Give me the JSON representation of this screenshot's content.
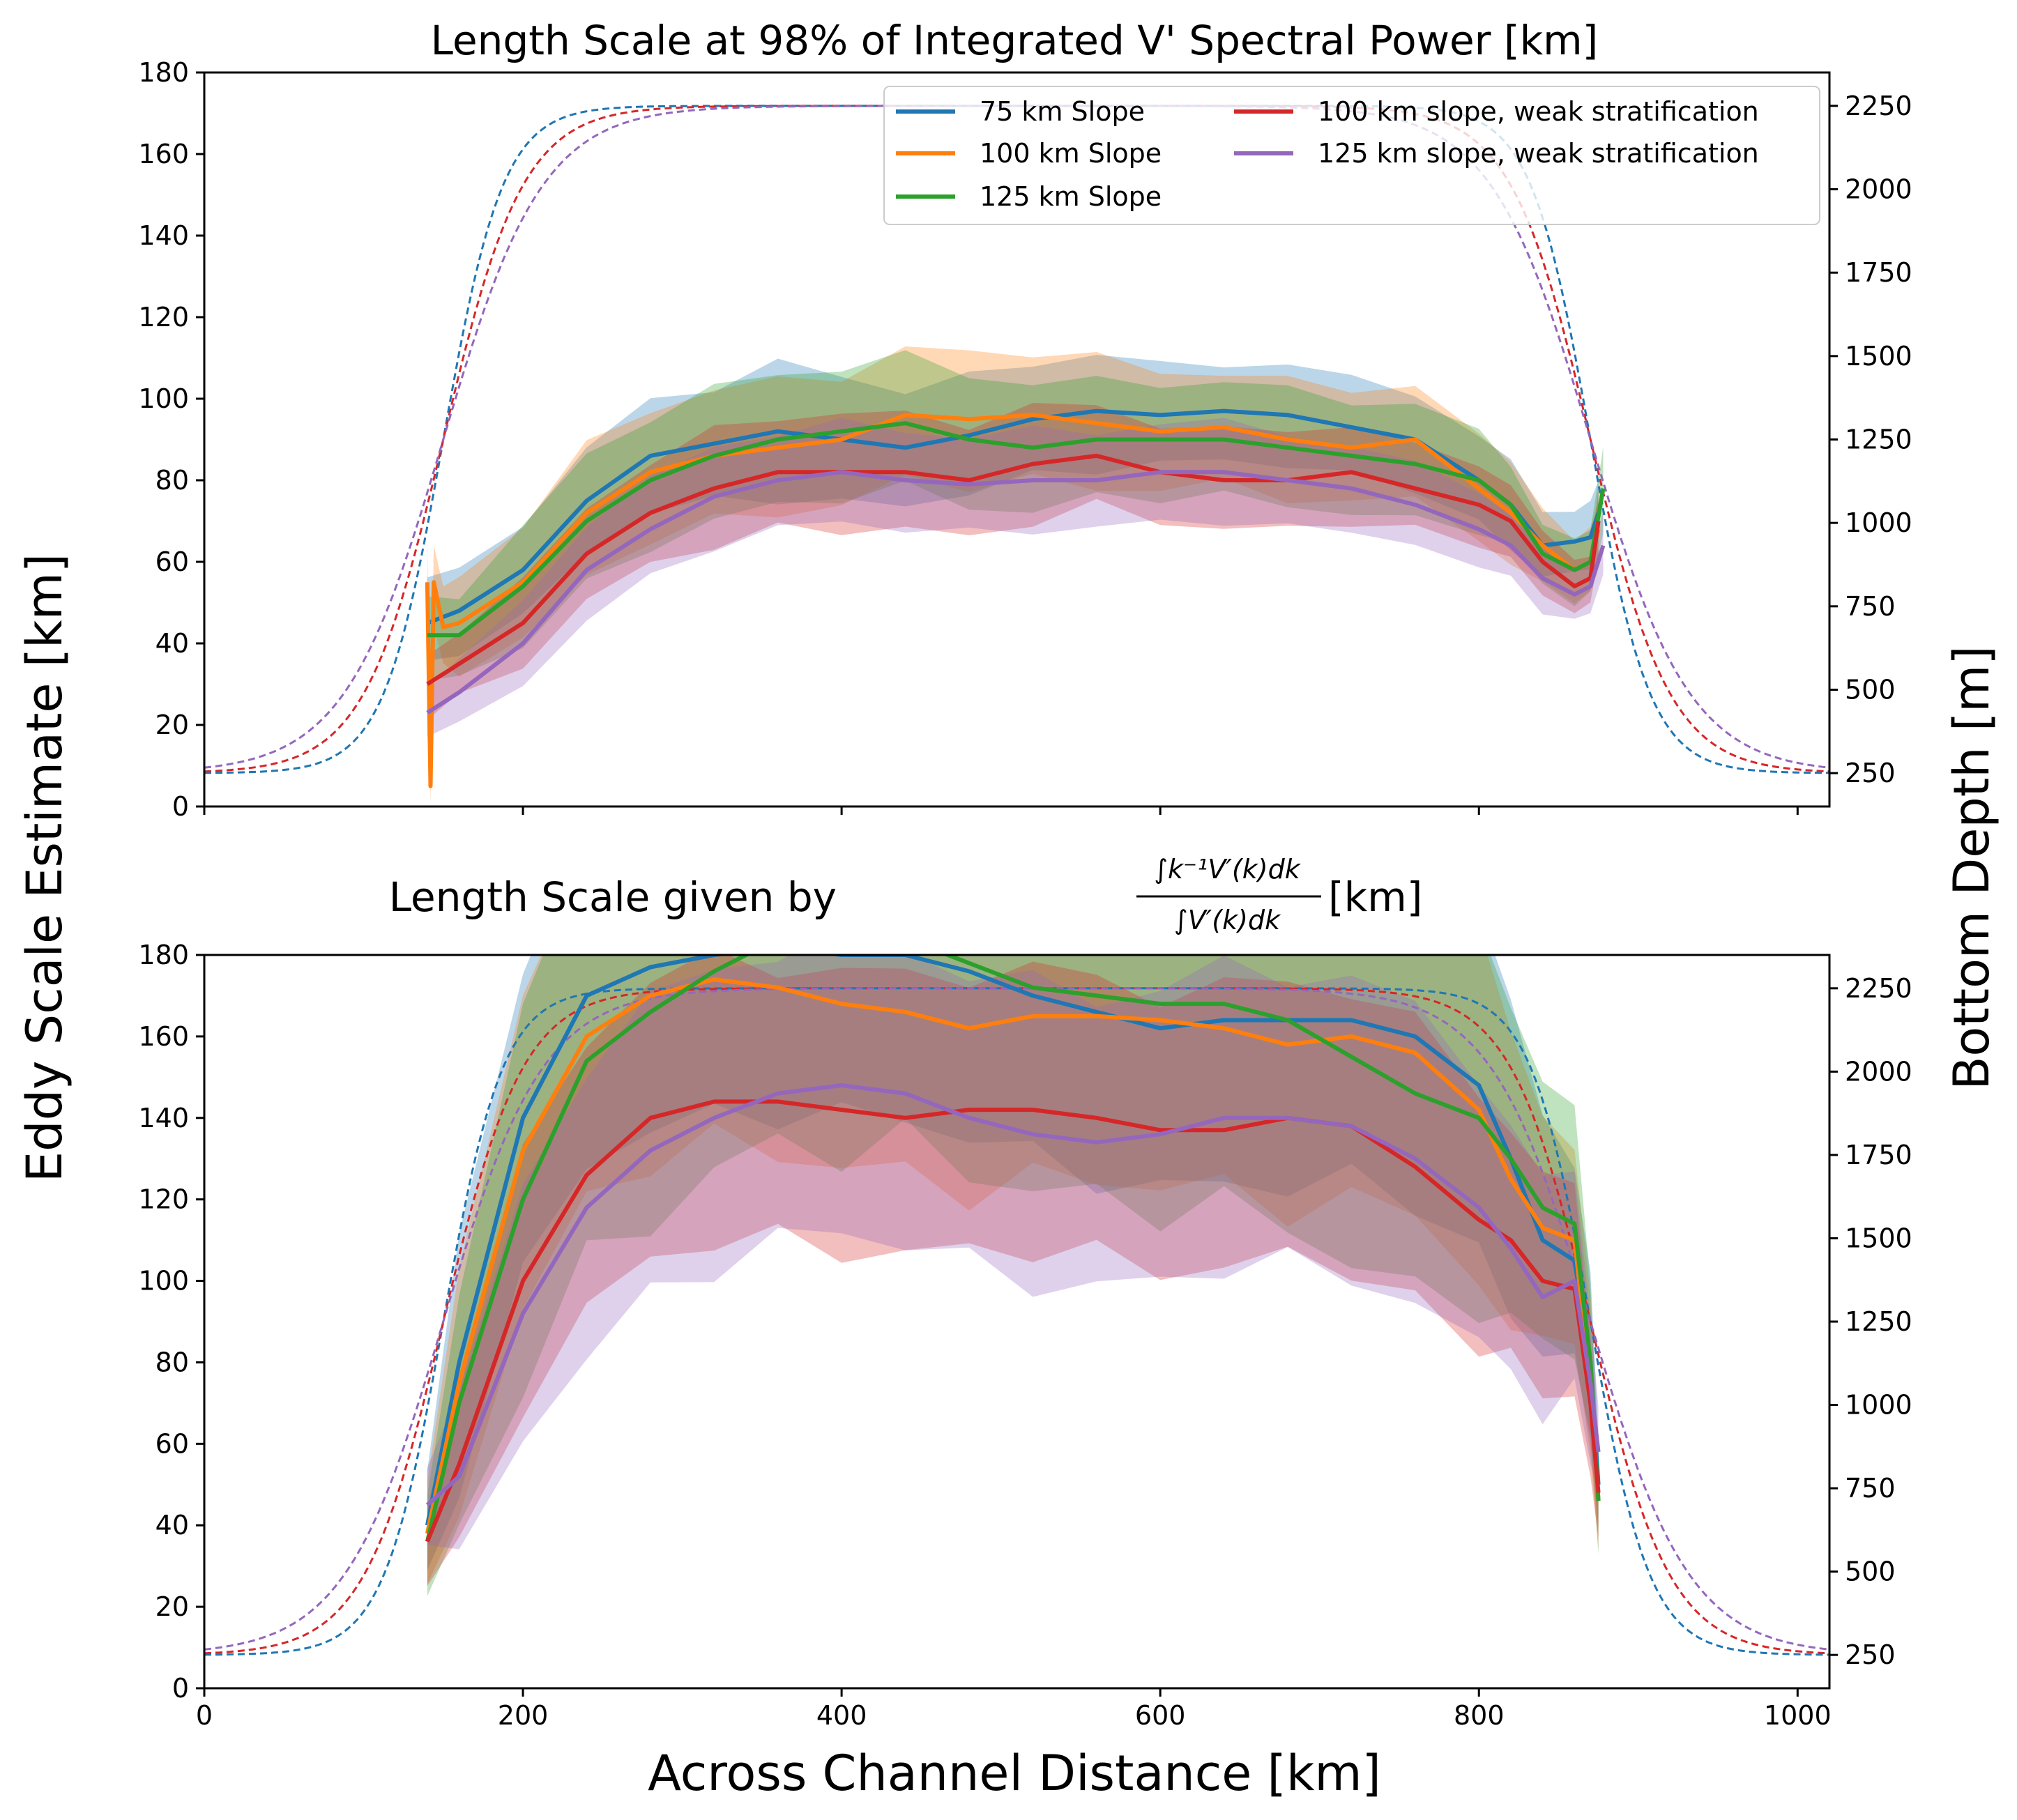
{
  "figure": {
    "xlabel": "Across Channel Distance [km]",
    "ylabel_left": "Eddy Scale Estimate [km]",
    "ylabel_right": "Bottom Depth [m]"
  },
  "chart_data": [
    {
      "type": "line",
      "title": "Length Scale at 98% of Integrated V' Spectral Power [km]",
      "xlim": [
        0,
        1020
      ],
      "ylim": [
        0,
        180
      ],
      "ylim_right": [
        150,
        2350
      ],
      "xticks": [
        0,
        200,
        400,
        600,
        800,
        1000
      ],
      "xtick_labels_shown": false,
      "yticks": [
        0,
        20,
        40,
        60,
        80,
        100,
        120,
        140,
        160,
        180
      ],
      "yticks_right": [
        250,
        500,
        750,
        1000,
        1250,
        1500,
        1750,
        2000,
        2250
      ],
      "grid": false,
      "legend": {
        "placement": "top-right",
        "columns": 2
      },
      "series": [
        {
          "name": "75 km Slope",
          "color": "#1f77b4",
          "x": [
            140,
            160,
            200,
            240,
            280,
            320,
            360,
            400,
            440,
            480,
            520,
            560,
            600,
            640,
            680,
            720,
            760,
            800,
            820,
            840,
            860,
            870,
            875
          ],
          "y": [
            45,
            48,
            58,
            75,
            86,
            89,
            92,
            90,
            88,
            91,
            95,
            97,
            96,
            97,
            96,
            93,
            90,
            80,
            74,
            64,
            65,
            66,
            72
          ],
          "band": [
            10,
            10,
            12,
            12,
            14,
            14,
            16,
            16,
            14,
            14,
            14,
            14,
            12,
            12,
            12,
            12,
            12,
            10,
            10,
            8,
            8,
            8,
            8
          ]
        },
        {
          "name": "100 km Slope",
          "color": "#ff7f0e",
          "x": [
            140,
            142,
            144,
            150,
            160,
            200,
            240,
            280,
            320,
            360,
            400,
            440,
            480,
            520,
            560,
            600,
            640,
            680,
            720,
            760,
            800,
            820,
            840,
            860,
            870,
            875
          ],
          "y": [
            55,
            5,
            55,
            44,
            45,
            55,
            72,
            82,
            86,
            88,
            90,
            96,
            95,
            96,
            94,
            92,
            93,
            90,
            88,
            90,
            78,
            72,
            64,
            58,
            60,
            68
          ],
          "band": [
            10,
            4,
            10,
            10,
            12,
            14,
            16,
            16,
            16,
            16,
            16,
            16,
            16,
            16,
            16,
            14,
            14,
            14,
            14,
            14,
            12,
            12,
            10,
            8,
            8,
            8
          ]
        },
        {
          "name": "125 km Slope",
          "color": "#2ca02c",
          "x": [
            140,
            160,
            200,
            240,
            280,
            320,
            360,
            400,
            440,
            480,
            520,
            560,
            600,
            640,
            680,
            720,
            760,
            800,
            820,
            840,
            860,
            870,
            878
          ],
          "y": [
            42,
            42,
            54,
            70,
            80,
            86,
            90,
            92,
            94,
            90,
            88,
            90,
            90,
            90,
            88,
            86,
            84,
            80,
            74,
            62,
            58,
            60,
            78
          ],
          "band": [
            10,
            10,
            14,
            16,
            16,
            16,
            16,
            16,
            16,
            16,
            16,
            14,
            14,
            14,
            14,
            14,
            14,
            12,
            10,
            8,
            8,
            8,
            10
          ]
        },
        {
          "name": "100 km slope, weak stratification",
          "color": "#d62728",
          "x": [
            140,
            160,
            200,
            240,
            280,
            320,
            360,
            400,
            440,
            480,
            520,
            560,
            600,
            640,
            680,
            720,
            760,
            800,
            820,
            840,
            860,
            870,
            875
          ],
          "y": [
            30,
            35,
            45,
            62,
            72,
            78,
            82,
            82,
            82,
            80,
            84,
            86,
            82,
            80,
            80,
            82,
            78,
            74,
            70,
            60,
            54,
            56,
            70
          ],
          "band": [
            8,
            8,
            10,
            12,
            12,
            14,
            14,
            14,
            14,
            14,
            14,
            12,
            12,
            12,
            12,
            12,
            10,
            10,
            10,
            8,
            6,
            6,
            8
          ]
        },
        {
          "name": "125 km slope, weak stratification",
          "color": "#9467bd",
          "x": [
            140,
            160,
            200,
            240,
            280,
            320,
            360,
            400,
            440,
            480,
            520,
            560,
            600,
            640,
            680,
            720,
            760,
            800,
            820,
            840,
            860,
            870,
            878
          ],
          "y": [
            23,
            28,
            40,
            58,
            68,
            76,
            80,
            82,
            80,
            79,
            80,
            80,
            82,
            82,
            80,
            78,
            74,
            68,
            64,
            56,
            52,
            54,
            64
          ],
          "band": [
            6,
            8,
            10,
            12,
            12,
            12,
            12,
            12,
            12,
            12,
            12,
            12,
            12,
            12,
            12,
            10,
            10,
            10,
            8,
            8,
            6,
            6,
            8
          ]
        }
      ],
      "bathymetry": [
        {
          "slope_km": 75,
          "color": "#1f77b4",
          "x_left": 150,
          "x_right": 870,
          "y_min": 250,
          "y_max": 2250
        },
        {
          "slope_km": 100,
          "color": "#d62728",
          "x_left": 150,
          "x_right": 870,
          "y_min": 250,
          "y_max": 2250
        },
        {
          "slope_km": 125,
          "color": "#9467bd",
          "x_left": 150,
          "x_right": 870,
          "y_min": 250,
          "y_max": 2250
        }
      ]
    },
    {
      "type": "line",
      "title": "Length Scale given by",
      "title_unit": "[km]",
      "title_fraction": {
        "numerator": "∫k⁻¹V′(k)dk",
        "denominator": "∫V′(k)dk"
      },
      "xlim": [
        0,
        1020
      ],
      "ylim": [
        0,
        180
      ],
      "ylim_right": [
        150,
        2350
      ],
      "xticks": [
        0,
        200,
        400,
        600,
        800,
        1000
      ],
      "yticks": [
        0,
        20,
        40,
        60,
        80,
        100,
        120,
        140,
        160,
        180
      ],
      "yticks_right": [
        250,
        500,
        750,
        1000,
        1250,
        1500,
        1750,
        2000,
        2250
      ],
      "grid": false,
      "series": [
        {
          "name": "75 km Slope",
          "color": "#1f77b4",
          "x": [
            140,
            160,
            200,
            240,
            280,
            320,
            360,
            400,
            440,
            480,
            520,
            560,
            600,
            640,
            680,
            720,
            760,
            800,
            820,
            840,
            860,
            870,
            875
          ],
          "y": [
            40,
            80,
            140,
            170,
            177,
            180,
            182,
            180,
            180,
            176,
            170,
            166,
            162,
            164,
            164,
            164,
            160,
            148,
            130,
            110,
            105,
            80,
            50
          ],
          "band": [
            12,
            30,
            40,
            40,
            40,
            40,
            40,
            40,
            40,
            40,
            40,
            40,
            40,
            40,
            40,
            40,
            40,
            40,
            35,
            30,
            25,
            20,
            12
          ]
        },
        {
          "name": "100 km Slope",
          "color": "#ff7f0e",
          "x": [
            140,
            160,
            200,
            240,
            280,
            320,
            360,
            400,
            440,
            480,
            520,
            560,
            600,
            640,
            680,
            720,
            760,
            800,
            820,
            840,
            860,
            870,
            875
          ],
          "y": [
            38,
            75,
            132,
            160,
            170,
            174,
            172,
            168,
            166,
            162,
            165,
            165,
            164,
            162,
            158,
            160,
            156,
            142,
            125,
            113,
            110,
            75,
            46
          ],
          "band": [
            12,
            30,
            40,
            40,
            40,
            40,
            40,
            40,
            40,
            40,
            40,
            40,
            40,
            40,
            40,
            40,
            40,
            40,
            35,
            30,
            25,
            20,
            12
          ]
        },
        {
          "name": "125 km Slope",
          "color": "#2ca02c",
          "x": [
            140,
            160,
            200,
            240,
            280,
            320,
            360,
            400,
            440,
            480,
            520,
            560,
            600,
            640,
            680,
            720,
            760,
            800,
            820,
            840,
            860,
            870,
            875
          ],
          "y": [
            36,
            70,
            120,
            154,
            166,
            176,
            184,
            182,
            184,
            178,
            172,
            170,
            168,
            168,
            164,
            155,
            146,
            140,
            130,
            118,
            114,
            80,
            46
          ],
          "band": [
            12,
            30,
            45,
            50,
            50,
            50,
            50,
            50,
            50,
            50,
            50,
            50,
            50,
            50,
            50,
            50,
            50,
            45,
            40,
            35,
            30,
            20,
            12
          ]
        },
        {
          "name": "100 km slope, weak stratification",
          "color": "#d62728",
          "x": [
            140,
            160,
            200,
            240,
            280,
            320,
            360,
            400,
            440,
            480,
            520,
            560,
            600,
            640,
            680,
            720,
            760,
            800,
            820,
            840,
            860,
            870,
            875
          ],
          "y": [
            36,
            55,
            100,
            126,
            140,
            144,
            144,
            142,
            140,
            142,
            142,
            140,
            137,
            137,
            140,
            138,
            128,
            115,
            110,
            100,
            98,
            70,
            48
          ],
          "band": [
            10,
            20,
            30,
            34,
            34,
            34,
            34,
            34,
            34,
            34,
            34,
            34,
            34,
            34,
            34,
            34,
            34,
            32,
            30,
            28,
            24,
            18,
            10
          ]
        },
        {
          "name": "125 km slope, weak stratification",
          "color": "#9467bd",
          "x": [
            140,
            160,
            200,
            240,
            280,
            320,
            360,
            400,
            440,
            480,
            520,
            560,
            600,
            640,
            680,
            720,
            760,
            800,
            820,
            840,
            860,
            870,
            875
          ],
          "y": [
            45,
            52,
            92,
            118,
            132,
            140,
            146,
            148,
            146,
            140,
            136,
            134,
            136,
            140,
            140,
            138,
            130,
            118,
            108,
            96,
            100,
            75,
            58
          ],
          "band": [
            10,
            20,
            30,
            36,
            36,
            36,
            36,
            36,
            36,
            36,
            36,
            36,
            36,
            36,
            36,
            36,
            36,
            34,
            32,
            28,
            24,
            18,
            10
          ]
        }
      ],
      "bathymetry": [
        {
          "slope_km": 75,
          "color": "#1f77b4",
          "x_left": 150,
          "x_right": 870,
          "y_min": 250,
          "y_max": 2250
        },
        {
          "slope_km": 100,
          "color": "#d62728",
          "x_left": 150,
          "x_right": 870,
          "y_min": 250,
          "y_max": 2250
        },
        {
          "slope_km": 125,
          "color": "#9467bd",
          "x_left": 150,
          "x_right": 870,
          "y_min": 250,
          "y_max": 2250
        }
      ]
    }
  ]
}
